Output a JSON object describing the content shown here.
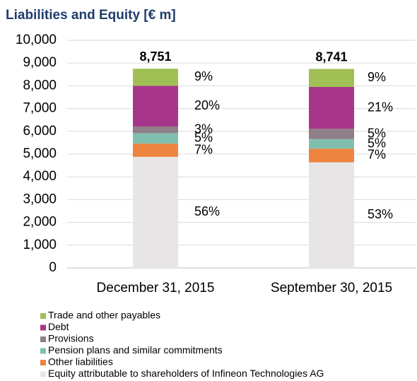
{
  "chart_data": {
    "type": "stacked_bar",
    "title": "Liabilities and Equity [€ m]",
    "categories": [
      "December 31, 2015",
      "September 30, 2015"
    ],
    "series": [
      {
        "name": "Equity attributable to shareholders of Infineon Technologies AG",
        "color": "#e7e5e5",
        "values": [
          4880,
          4640
        ],
        "value_labels": [
          "56%",
          "53%"
        ]
      },
      {
        "name": "Other liabilities",
        "color": "#ef8340",
        "values": [
          580,
          600
        ],
        "value_labels": [
          "7%",
          "7%"
        ]
      },
      {
        "name": "Pension plans and similar commitments",
        "color": "#80bfae",
        "values": [
          460,
          420
        ],
        "value_labels": [
          "5%",
          "5%"
        ]
      },
      {
        "name": "Provisions",
        "color": "#8e8088",
        "values": [
          290,
          450
        ],
        "value_labels": [
          "3%",
          "5%"
        ]
      },
      {
        "name": "Debt",
        "color": "#a7358a",
        "values": [
          1790,
          1840
        ],
        "value_labels": [
          "20%",
          "21%"
        ]
      },
      {
        "name": "Trade and other payables",
        "color": "#a0bf55",
        "values": [
          751,
          791
        ],
        "value_labels": [
          "9%",
          "9%"
        ]
      }
    ],
    "totals": [
      8751,
      8741
    ],
    "total_labels": [
      "8,751",
      "8,741"
    ],
    "ylim": [
      0,
      10000
    ],
    "yticks": [
      0,
      {
        "value": 1000,
        "label": "1,000"
      },
      {
        "value": 2000,
        "label": "2,000"
      },
      {
        "value": 3000,
        "label": "3,000"
      },
      {
        "value": 4000,
        "label": "4,000"
      },
      {
        "value": 5000,
        "label": "5,000"
      },
      {
        "value": 6000,
        "label": "6,000"
      },
      {
        "value": 7000,
        "label": "7,000"
      },
      {
        "value": 8000,
        "label": "8,000"
      },
      {
        "value": 9000,
        "label": "9,000"
      },
      {
        "value": 10000,
        "label": "10,000"
      }
    ],
    "grid": true
  }
}
